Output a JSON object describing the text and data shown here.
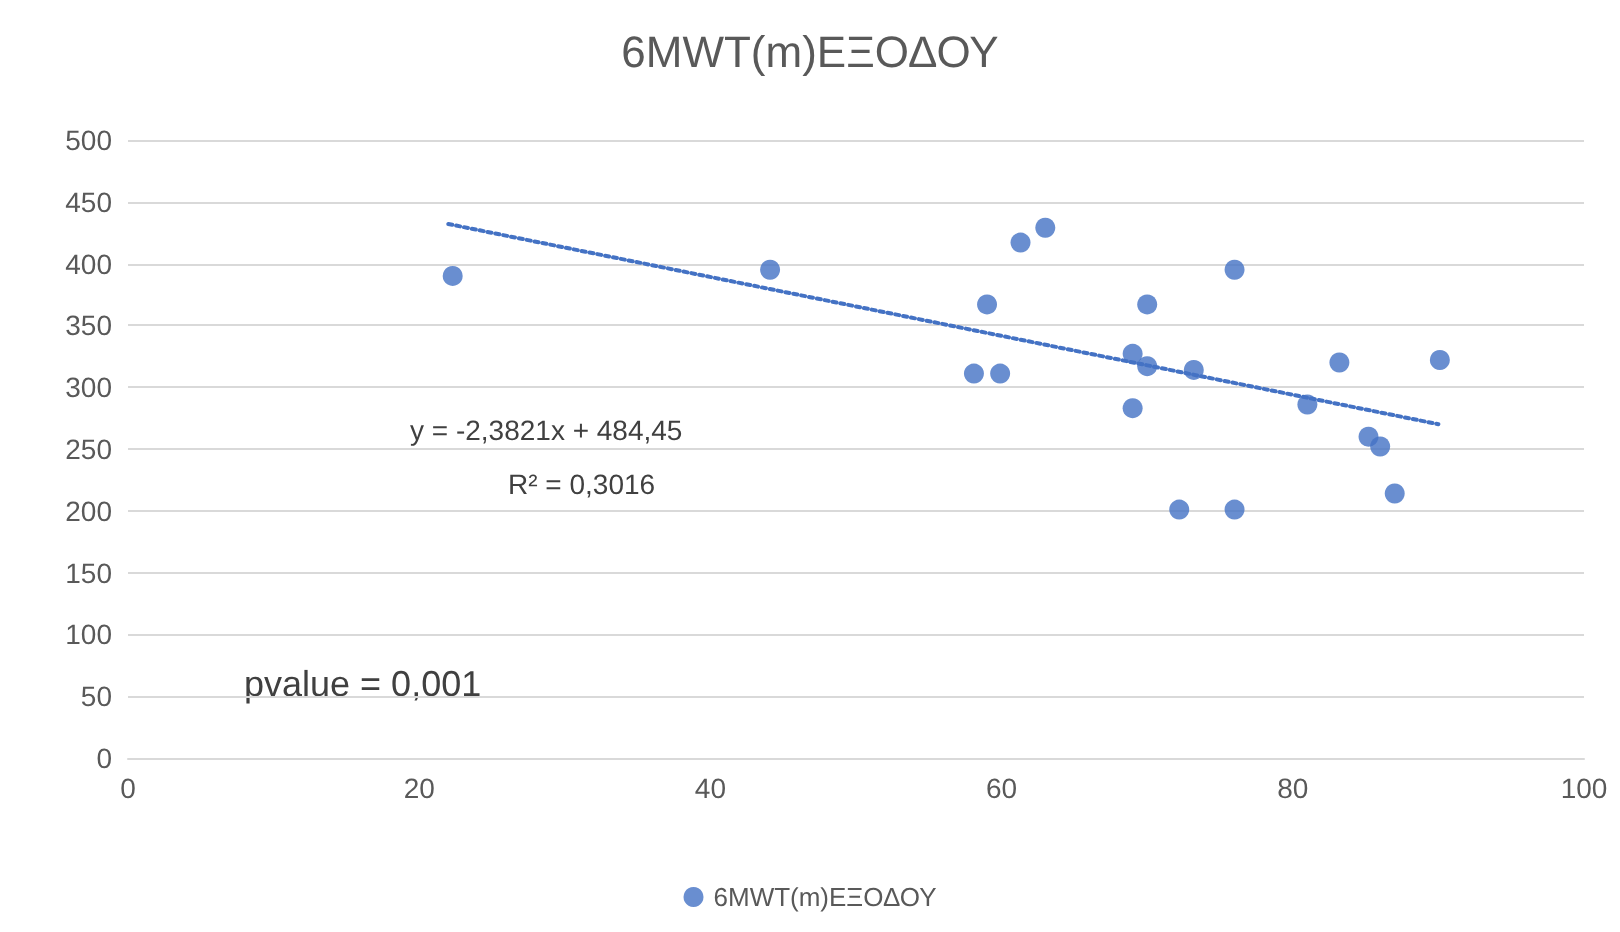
{
  "chart_data": {
    "type": "scatter",
    "title": "6MWT(m)ΕΞΟΔΟΥ",
    "series": [
      {
        "name": "6MWT(m)ΕΞΟΔΟΥ",
        "color": "#4472c4",
        "marker": "circle",
        "x": [
          22.3,
          44.1,
          59,
          61.3,
          63,
          58.1,
          59.9,
          70,
          76,
          69,
          70,
          69,
          73.2,
          72.2,
          76,
          83.2,
          81,
          85.2,
          86,
          87,
          90.1
        ],
        "values": [
          390,
          395,
          367,
          417,
          429,
          311,
          311,
          367,
          395,
          327,
          317,
          283,
          314,
          201,
          201,
          320,
          286,
          260,
          252,
          214,
          322
        ]
      },
      {
        "type": "line",
        "color": "#4472c4",
        "line_style": "dotted",
        "marker": "none",
        "x": [
          22,
          90
        ],
        "values": [
          432.05,
          270.06
        ]
      }
    ],
    "xlim": [
      0,
      100
    ],
    "xticks": [
      0,
      20,
      40,
      60,
      80,
      100
    ],
    "ylim": [
      0,
      500
    ],
    "yticks": [
      0,
      50,
      100,
      150,
      200,
      250,
      300,
      350,
      400,
      450,
      500
    ],
    "grid": "y",
    "legend": "bottom",
    "annotations": [
      "y = -2,3821x + 484,45",
      "R² = 0,3016",
      "pvalue = 0,001"
    ]
  }
}
